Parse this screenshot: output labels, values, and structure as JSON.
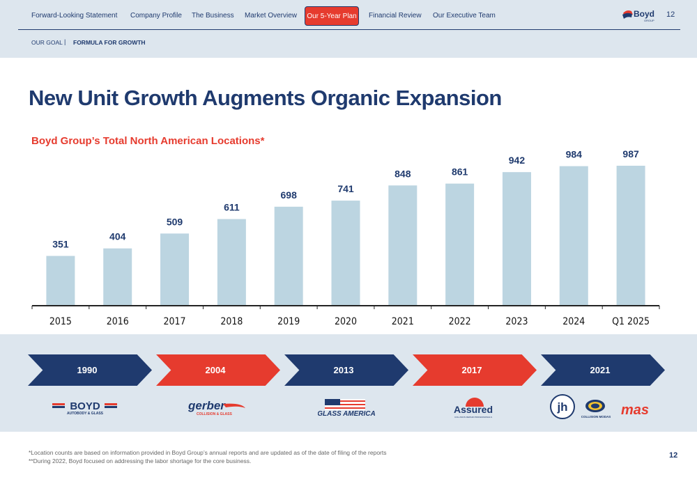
{
  "nav": {
    "items": [
      {
        "label": "Forward-Looking Statement",
        "active": false
      },
      {
        "label": "Company Profile",
        "active": false
      },
      {
        "label": "The Business",
        "active": false
      },
      {
        "label": "Market Overview",
        "active": false
      },
      {
        "label": "Our 5-Year Plan",
        "active": true
      },
      {
        "label": "Financial Review",
        "active": false
      },
      {
        "label": "Our Executive Team",
        "active": false
      }
    ],
    "logo_text": "Boyd",
    "logo_sub": "GROUP",
    "page_number": "12"
  },
  "breadcrumb": {
    "section": "OUR GOAL",
    "separator": "|",
    "page": "FORMULA FOR GROWTH"
  },
  "title": "New Unit Growth Augments Organic Expansion",
  "subtitle": "Boyd Group’s Total North American Locations*",
  "chart_data": {
    "type": "bar",
    "categories": [
      "2015",
      "2016",
      "2017",
      "2018",
      "2019",
      "2020",
      "2021",
      "2022",
      "2023",
      "2024",
      "Q1 2025"
    ],
    "values": [
      351,
      404,
      509,
      611,
      698,
      741,
      848,
      861,
      942,
      984,
      987
    ],
    "ylim": [
      0,
      1100
    ],
    "grid": false,
    "bar_color": "#bcd5e1",
    "label_color": "#1f3a6e"
  },
  "timeline": [
    {
      "year": "1990",
      "color": "navy"
    },
    {
      "year": "2004",
      "color": "red"
    },
    {
      "year": "2013",
      "color": "navy"
    },
    {
      "year": "2017",
      "color": "red"
    },
    {
      "year": "2021",
      "color": "navy"
    }
  ],
  "brands": {
    "boyd": {
      "name": "BOYD",
      "sub": "AUTOBODY & GLASS"
    },
    "gerber": {
      "name": "gerber",
      "sub": "COLLISION & GLASS"
    },
    "glass_america": {
      "name": "GLASS AMERICA"
    },
    "assured": {
      "name": "Assured",
      "sub": "COLLISION REPAIR PROFESSIONALS"
    },
    "jh": {
      "name": "jh"
    },
    "collision_modas": {
      "name": "COLLISION MODAS"
    },
    "mas": {
      "name": "mas"
    }
  },
  "footnotes": [
    "*Location counts are based on information provided in Boyd Group’s annual reports and are updated as of the date of filing of the reports",
    "**During 2022, Boyd focused on addressing the labor shortage for the core business."
  ],
  "page_number_bottom": "12",
  "colors": {
    "navy": "#1f3a6e",
    "red": "#e63b2e",
    "panel": "#dde6ee"
  }
}
